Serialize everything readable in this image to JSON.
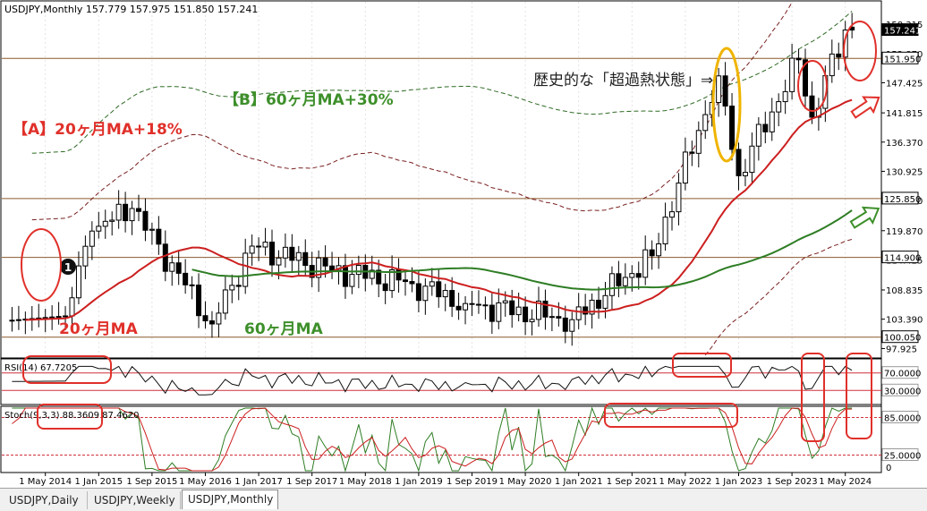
{
  "header": {
    "symbol_line": "USDJPY,Monthly  157.779 157.975 151.850 157.241"
  },
  "colors": {
    "candle_stroke": "#000000",
    "ma20": "#cc1f1f",
    "ma60": "#2e7d24",
    "env_a": "#7a1f1f",
    "env_b": "#2e6a24",
    "annot_red": "#e0302a",
    "annot_green": "#3d8f2a",
    "annot_yellow": "#f0b400",
    "hline": "#8b5a2b"
  },
  "annotations": {
    "label_a": "【A】20ヶ月MA+18%",
    "label_b": "【B】60ヶ月MA+30%",
    "label_ma20": "20ヶ月MA",
    "label_ma60": "60ヶ月MA",
    "label_overheat": "歴史的な「超過熱状態」⇒",
    "marker_1": "1"
  },
  "price_axis": {
    "ticks": [
      "158.315",
      "152.870",
      "147.425",
      "141.815",
      "136.370",
      "130.925",
      "125.480",
      "119.870",
      "114.425",
      "108.835",
      "103.390",
      "97.925"
    ],
    "badges": [
      {
        "label": "157.241",
        "value": 157.241,
        "style": "dark"
      },
      {
        "label": "151.950",
        "value": 151.95,
        "style": "light"
      },
      {
        "label": "125.850",
        "value": 125.85,
        "style": "light"
      },
      {
        "label": "114.900",
        "value": 114.9,
        "style": "light"
      },
      {
        "label": "100.050",
        "value": 100.05,
        "style": "light"
      }
    ]
  },
  "rsi": {
    "title": "RSI(14) 67.7205",
    "levels": [
      {
        "label": "70.0000",
        "value": 70
      },
      {
        "label": "30.0000",
        "value": 30
      }
    ]
  },
  "stoch": {
    "title": "Stoch(9,3,3) 88.3609 87.4620",
    "levels": [
      {
        "label": "85.0000",
        "value": 85
      },
      {
        "label": "25.0000",
        "value": 25
      }
    ],
    "bottom_tick": "0"
  },
  "time_axis": {
    "labels": [
      "1 May 2014",
      "1 Jan 2015",
      "1 Sep 2015",
      "1 May 2016",
      "1 Jan 2017",
      "1 Sep 2017",
      "1 May 2018",
      "1 Jan 2019",
      "1 Sep 2019",
      "1 May 2020",
      "1 Jan 2021",
      "1 Sep 2021",
      "1 May 2022",
      "1 Jan 2023",
      "1 Sep 2023",
      "1 May 2024"
    ]
  },
  "tabs": [
    {
      "label": "USDJPY,Daily",
      "active": false
    },
    {
      "label": "USDJPY,Weekly",
      "active": false
    },
    {
      "label": "USDJPY,Monthly",
      "active": true
    }
  ],
  "chart_data": {
    "type": "candlestick",
    "symbol": "USDJPY",
    "timeframe": "Monthly",
    "x_range": [
      "2013-11",
      "2024-06"
    ],
    "y_range": [
      97.5,
      161.5
    ],
    "key_points": [
      {
        "date": "2014-08",
        "close": 104.0
      },
      {
        "date": "2014-12",
        "close": 119.8
      },
      {
        "date": "2015-06",
        "close": 124.0
      },
      {
        "date": "2016-06",
        "close": 102.5
      },
      {
        "date": "2016-12",
        "close": 117.0
      },
      {
        "date": "2017-12",
        "close": 112.5
      },
      {
        "date": "2018-12",
        "close": 110.0
      },
      {
        "date": "2019-08",
        "close": 106.3
      },
      {
        "date": "2020-12",
        "close": 103.3
      },
      {
        "date": "2021-12",
        "close": 115.2
      },
      {
        "date": "2022-10",
        "close": 148.7
      },
      {
        "date": "2023-01",
        "close": 130.1
      },
      {
        "date": "2023-10",
        "close": 151.7
      },
      {
        "date": "2023-12",
        "close": 141.0
      },
      {
        "date": "2024-05",
        "close": 157.241
      }
    ],
    "last_bar": {
      "open": 157.779,
      "high": 157.975,
      "low": 151.85,
      "close": 157.241
    },
    "overlays": [
      "20ヶ月MA",
      "60ヶ月MA",
      "【A】20ヶ月MA+18%",
      "【B】60ヶ月MA+30%"
    ],
    "indicators": [
      {
        "name": "RSI(14)",
        "value": 67.7205,
        "levels": [
          70,
          30
        ]
      },
      {
        "name": "Stoch(9,3,3)",
        "values": [
          88.3609,
          87.462
        ],
        "levels": [
          85,
          25
        ]
      }
    ]
  }
}
